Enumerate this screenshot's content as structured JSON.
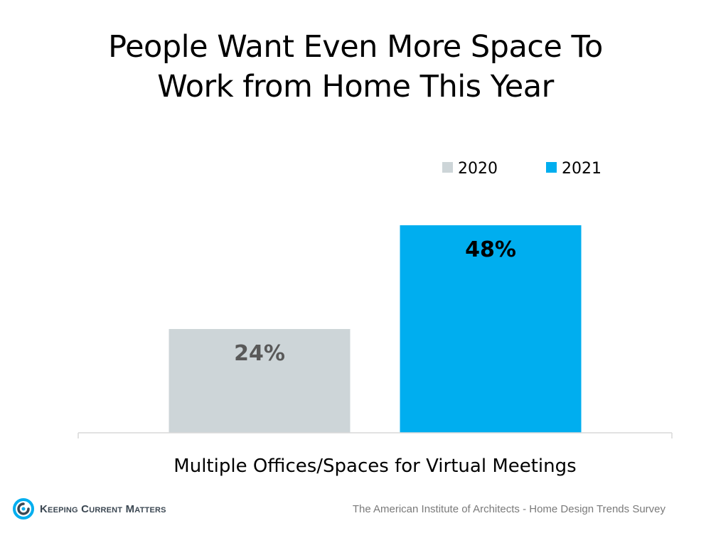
{
  "page": {
    "title_lines": [
      "People Want Even More Space To",
      "Work from Home This Year"
    ],
    "source": "The American Institute of Architects - Home Design Trends Survey",
    "logo_text": "Keeping Current Matters"
  },
  "colors": {
    "series_2020": "#cdd5d8",
    "series_2021": "#00aeef",
    "label_2020": "#595959",
    "label_2021": "#000000",
    "axis": "#d9d9d9"
  },
  "chart_data": {
    "type": "bar",
    "title": "People Want Even More Space To Work from Home This Year",
    "categories": [
      "Multiple Offices/Spaces for Virtual Meetings"
    ],
    "series": [
      {
        "name": "2020",
        "values": [
          24
        ],
        "data_labels": [
          "24%"
        ],
        "color": "#cdd5d8"
      },
      {
        "name": "2021",
        "values": [
          48
        ],
        "data_labels": [
          "48%"
        ],
        "color": "#00aeef"
      }
    ],
    "ylim": [
      0,
      59
    ],
    "unit": "%",
    "legend_position": "top-right",
    "grid": false,
    "xlabel": "",
    "ylabel": ""
  }
}
